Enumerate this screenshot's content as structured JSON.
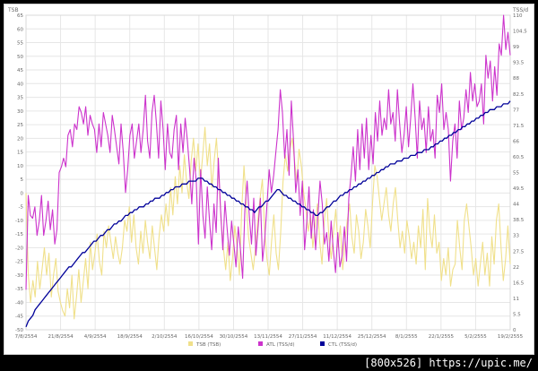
{
  "watermark": "[800x526] https://upic.me/",
  "colors": {
    "tsb": "#f0e08a",
    "atl": "#cc33cc",
    "ctl": "#000099",
    "grid": "#e6e6e6",
    "axis_text": "#666666"
  },
  "chart_data": {
    "type": "line",
    "title": "",
    "grid": true,
    "legend_placement": "bottom",
    "left_axis": {
      "label": "TSB",
      "range": [
        -50,
        65
      ],
      "ticks": [
        "-50",
        "-45",
        "-40",
        "-35",
        "-30",
        "-25",
        "-20",
        "-15",
        "-10",
        "-5",
        "0",
        "5",
        "10",
        "15",
        "20",
        "25",
        "30",
        "35",
        "40",
        "45",
        "50",
        "55",
        "60",
        "65"
      ]
    },
    "right_axis": {
      "label": "TSS/d",
      "range": [
        0,
        110
      ],
      "ticks": [
        "0",
        "5.5",
        "11",
        "16.5",
        "22",
        "27.5",
        "33",
        "38.5",
        "44",
        "49.5",
        "55",
        "60.5",
        "66",
        "71.5",
        "77",
        "82.5",
        "88",
        "93.5",
        "99",
        "104.5",
        "110"
      ]
    },
    "x_ticks": [
      "7/8/2554",
      "21/8/2554",
      "4/9/2554",
      "18/9/2554",
      "2/10/2554",
      "16/10/2554",
      "30/10/2554",
      "13/11/2554",
      "27/11/2554",
      "11/12/2554",
      "25/12/2554",
      "8/1/2555",
      "22/1/2555",
      "5/2/2555",
      "19/2/2555"
    ],
    "series": [
      {
        "name": "TSB (TSB)",
        "axis": "left",
        "values": [
          0,
          -30,
          -40,
          -32,
          -38,
          -25,
          -35,
          -28,
          -20,
          -30,
          -22,
          -38,
          -30,
          -24,
          -36,
          -40,
          -43,
          -45,
          -35,
          -42,
          -30,
          -46,
          -38,
          -28,
          -40,
          -32,
          -24,
          -35,
          -18,
          -28,
          -22,
          -15,
          -25,
          -30,
          -14,
          -20,
          -12,
          -18,
          -24,
          -16,
          -22,
          -26,
          -20,
          -10,
          -14,
          -5,
          -18,
          -8,
          -20,
          -26,
          -14,
          -22,
          -10,
          -18,
          -24,
          -12,
          -20,
          -28,
          -16,
          -8,
          -14,
          -4,
          -12,
          2,
          -8,
          6,
          -4,
          10,
          0,
          14,
          4,
          -2,
          12,
          20,
          8,
          18,
          4,
          14,
          24,
          10,
          18,
          2,
          12,
          20,
          6,
          -10,
          -20,
          -28,
          -18,
          -32,
          -24,
          -12,
          -20,
          -30,
          -6,
          10,
          -4,
          -16,
          -22,
          -28,
          -20,
          -10,
          -2,
          5,
          -14,
          -24,
          -30,
          -18,
          -8,
          -22,
          -28,
          -14,
          4,
          14,
          8,
          16,
          20,
          12,
          4,
          16,
          10,
          0,
          -6,
          -14,
          -8,
          -20,
          -12,
          -4,
          -18,
          -26,
          -10,
          -2,
          -16,
          -24,
          -14,
          -6,
          -20,
          -12,
          -28,
          -18,
          -10,
          -4,
          -16,
          -22,
          -8,
          -14,
          -24,
          -18,
          -6,
          -12,
          -20,
          -4,
          10,
          6,
          -2,
          -10,
          -4,
          2,
          -8,
          -14,
          -4,
          2,
          -10,
          -20,
          -14,
          -22,
          -10,
          -16,
          -24,
          -18,
          -26,
          -12,
          -20,
          -6,
          -28,
          -2,
          -14,
          -20,
          -8,
          -22,
          -18,
          -32,
          -24,
          -30,
          -20,
          -34,
          -28,
          -26,
          -10,
          -20,
          -28,
          -10,
          -4,
          -12,
          -20,
          -30,
          -24,
          -34,
          -26,
          -18,
          -30,
          -22,
          -34,
          -16,
          -26,
          -10,
          -4,
          -20,
          -32,
          -24,
          -12,
          -26
        ]
      },
      {
        "name": "ATL (TSS/d)",
        "axis": "right",
        "values": [
          14,
          47,
          40,
          39,
          43,
          33,
          38,
          47,
          33,
          38,
          45,
          35,
          42,
          30,
          35,
          55,
          57,
          60,
          57,
          68,
          70,
          64,
          72,
          70,
          78,
          76,
          72,
          78,
          68,
          75,
          72,
          70,
          62,
          72,
          64,
          76,
          72,
          68,
          62,
          75,
          70,
          64,
          58,
          72,
          62,
          48,
          56,
          68,
          72,
          60,
          66,
          72,
          62,
          70,
          82,
          66,
          60,
          76,
          82,
          72,
          60,
          80,
          70,
          56,
          72,
          62,
          60,
          70,
          75,
          56,
          72,
          62,
          74,
          66,
          56,
          44,
          60,
          52,
          30,
          56,
          40,
          32,
          50,
          38,
          28,
          44,
          34,
          60,
          42,
          28,
          45,
          35,
          26,
          38,
          30,
          22,
          36,
          28,
          18,
          42,
          52,
          40,
          30,
          46,
          26,
          36,
          46,
          24,
          32,
          44,
          56,
          48,
          54,
          62,
          70,
          84,
          76,
          60,
          70,
          54,
          80,
          66,
          48,
          56,
          40,
          52,
          28,
          38,
          50,
          32,
          42,
          28,
          40,
          52,
          44,
          30,
          34,
          24,
          38,
          28,
          20,
          34,
          22,
          26,
          36,
          24,
          46,
          54,
          64,
          52,
          70,
          56,
          72,
          60,
          74,
          56,
          68,
          58,
          76,
          66,
          80,
          68,
          74,
          70,
          84,
          72,
          76,
          66,
          84,
          72,
          62,
          68,
          78,
          64,
          74,
          86,
          74,
          60,
          80,
          70,
          74,
          62,
          78,
          66,
          70,
          60,
          82,
          76,
          86,
          70,
          76,
          70,
          52,
          66,
          72,
          60,
          80,
          70,
          74,
          84,
          76,
          90,
          80,
          86,
          78,
          80,
          86,
          72,
          96,
          88,
          94,
          80,
          92,
          82,
          100,
          96,
          110,
          98,
          104,
          96
        ]
      },
      {
        "name": "CTL (TSS/d)",
        "axis": "right",
        "values": [
          1,
          3,
          4,
          5,
          7,
          8,
          9,
          10,
          11,
          12,
          13,
          14,
          15,
          16,
          17,
          18,
          19,
          20,
          21,
          22,
          22,
          23,
          24,
          25,
          26,
          27,
          27,
          28,
          29,
          30,
          31,
          31,
          32,
          33,
          33,
          34,
          35,
          35,
          36,
          37,
          37,
          38,
          38,
          39,
          40,
          40,
          41,
          41,
          42,
          42,
          43,
          43,
          43,
          44,
          44,
          45,
          45,
          46,
          46,
          46,
          47,
          47,
          48,
          48,
          49,
          49,
          50,
          50,
          50,
          51,
          51,
          51,
          52,
          52,
          52,
          52,
          53,
          53,
          53,
          52,
          52,
          51,
          51,
          50,
          50,
          49,
          49,
          48,
          48,
          47,
          47,
          46,
          46,
          45,
          45,
          44,
          44,
          43,
          43,
          42,
          42,
          41,
          42,
          43,
          43,
          44,
          45,
          45,
          46,
          47,
          48,
          49,
          49,
          48,
          47,
          47,
          46,
          46,
          45,
          45,
          44,
          44,
          43,
          43,
          42,
          42,
          41,
          41,
          40,
          40,
          41,
          41,
          42,
          43,
          43,
          44,
          45,
          45,
          46,
          47,
          47,
          48,
          48,
          49,
          49,
          50,
          50,
          51,
          51,
          52,
          52,
          53,
          53,
          54,
          54,
          55,
          55,
          56,
          56,
          57,
          57,
          58,
          58,
          58,
          59,
          59,
          59,
          60,
          60,
          60,
          61,
          61,
          61,
          62,
          62,
          62,
          63,
          63,
          63,
          64,
          64,
          65,
          65,
          66,
          66,
          67,
          67,
          68,
          68,
          69,
          69,
          70,
          70,
          71,
          71,
          72,
          72,
          73,
          73,
          74,
          74,
          75,
          75,
          76,
          76,
          77,
          77,
          77,
          78,
          78,
          78,
          79,
          79,
          79,
          80
        ]
      }
    ]
  }
}
